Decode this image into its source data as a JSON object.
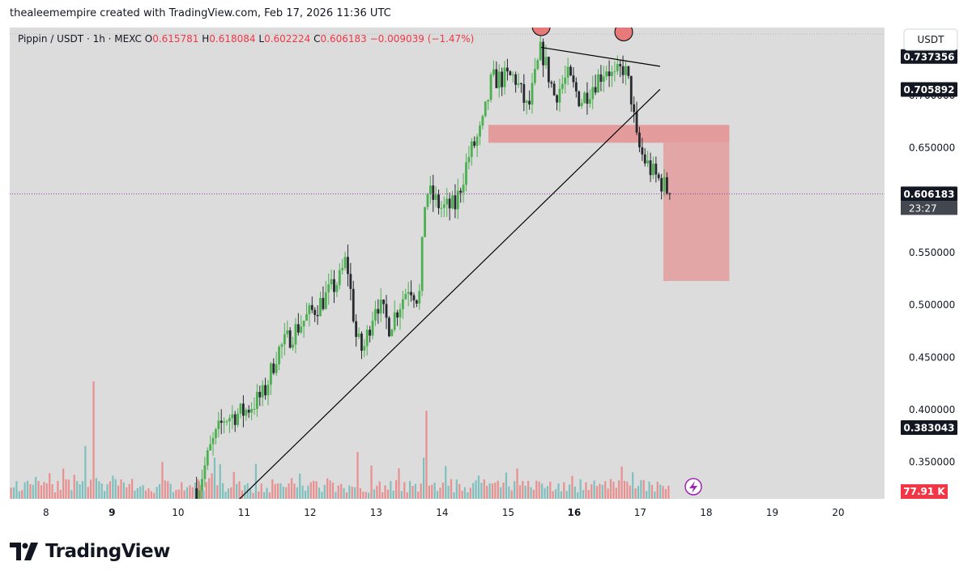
{
  "header": {
    "caption": "thealeemempire created with TradingView.com, Feb 17, 2026 11:36 UTC"
  },
  "legend": {
    "symbol": "Pippin / USDT · 1h · MEXC",
    "open_label": "O",
    "open": "0.615781",
    "high_label": "H",
    "high": "0.618084",
    "low_label": "L",
    "low": "0.602224",
    "close_label": "C",
    "close": "0.606183",
    "change": "−0.009039 (−1.47%)"
  },
  "currency_button": "USDT",
  "footer": {
    "brand": "TradingView",
    "logo_icon": "tradingview-logo-icon"
  },
  "colors": {
    "background": "#dcdcdc",
    "up": "#4caf50",
    "down": "#26292e",
    "volume_up": "#7ec0bd",
    "volume_down": "#e88f8f",
    "zone": "#e58f8f",
    "legend_value": "#f23645"
  },
  "chart_data": {
    "type": "candlestick",
    "x_ticks": [
      {
        "label": "8",
        "day": 8
      },
      {
        "label": "9",
        "day": 9,
        "bold": true
      },
      {
        "label": "10",
        "day": 10
      },
      {
        "label": "11",
        "day": 11
      },
      {
        "label": "12",
        "day": 12
      },
      {
        "label": "13",
        "day": 13
      },
      {
        "label": "14",
        "day": 14
      },
      {
        "label": "15",
        "day": 15
      },
      {
        "label": "16",
        "day": 16,
        "bold": true
      },
      {
        "label": "17",
        "day": 17
      },
      {
        "label": "18",
        "day": 18
      },
      {
        "label": "19",
        "day": 19
      },
      {
        "label": "20",
        "day": 20
      }
    ],
    "y_ticks": [
      "0.750000",
      "0.700000",
      "0.650000",
      "0.550000",
      "0.500000",
      "0.450000",
      "0.400000",
      "0.350000"
    ],
    "ylim": [
      0.315,
      0.765
    ],
    "xlim": [
      7.45,
      20.7
    ],
    "price_labels": [
      {
        "value": 0.737356,
        "text": "0.737356",
        "style": "dark"
      },
      {
        "value": 0.705892,
        "text": "0.705892",
        "style": "dark"
      },
      {
        "value": 0.606183,
        "text": "0.606183",
        "style": "last",
        "countdown": "23:27"
      },
      {
        "value": 0.383043,
        "text": "0.383043",
        "style": "dark"
      }
    ],
    "volume_label": "77.91 K",
    "last_price": 0.606183,
    "key_points": [
      {
        "day": 10.3,
        "price": 0.325
      },
      {
        "day": 10.5,
        "price": 0.365
      },
      {
        "day": 10.7,
        "price": 0.392
      },
      {
        "day": 11.0,
        "price": 0.398
      },
      {
        "day": 11.3,
        "price": 0.415
      },
      {
        "day": 11.5,
        "price": 0.455
      },
      {
        "day": 11.8,
        "price": 0.478
      },
      {
        "day": 12.0,
        "price": 0.492
      },
      {
        "day": 12.2,
        "price": 0.505
      },
      {
        "day": 12.45,
        "price": 0.525
      },
      {
        "day": 12.55,
        "price": 0.545
      },
      {
        "day": 12.7,
        "price": 0.468
      },
      {
        "day": 12.8,
        "price": 0.455
      },
      {
        "day": 13.0,
        "price": 0.505
      },
      {
        "day": 13.2,
        "price": 0.48
      },
      {
        "day": 13.5,
        "price": 0.52
      },
      {
        "day": 13.65,
        "price": 0.505
      },
      {
        "day": 13.75,
        "price": 0.61
      },
      {
        "day": 14.0,
        "price": 0.592
      },
      {
        "day": 14.2,
        "price": 0.595
      },
      {
        "day": 14.4,
        "price": 0.642
      },
      {
        "day": 14.6,
        "price": 0.668
      },
      {
        "day": 14.75,
        "price": 0.715
      },
      {
        "day": 15.1,
        "price": 0.718
      },
      {
        "day": 15.3,
        "price": 0.685
      },
      {
        "day": 15.5,
        "price": 0.745
      },
      {
        "day": 15.7,
        "price": 0.7
      },
      {
        "day": 15.9,
        "price": 0.718
      },
      {
        "day": 16.1,
        "price": 0.695
      },
      {
        "day": 16.3,
        "price": 0.712
      },
      {
        "day": 16.5,
        "price": 0.728
      },
      {
        "day": 16.6,
        "price": 0.715
      },
      {
        "day": 16.75,
        "price": 0.728
      },
      {
        "day": 16.85,
        "price": 0.705
      },
      {
        "day": 16.95,
        "price": 0.655
      },
      {
        "day": 17.05,
        "price": 0.64
      },
      {
        "day": 17.2,
        "price": 0.625
      },
      {
        "day": 17.35,
        "price": 0.615
      },
      {
        "day": 17.45,
        "price": 0.606
      }
    ],
    "volume_spikes": [
      {
        "day": 8.7,
        "size": 1.0,
        "dir": "down"
      },
      {
        "day": 8.6,
        "size": 0.45,
        "dir": "up"
      },
      {
        "day": 13.75,
        "size": 0.75,
        "dir": "down"
      },
      {
        "day": 13.7,
        "size": 0.35,
        "dir": "up"
      },
      {
        "day": 12.7,
        "size": 0.4,
        "dir": "down"
      },
      {
        "day": 10.55,
        "size": 0.35,
        "dir": "up"
      }
    ],
    "annotations": {
      "uptrend_line": [
        {
          "day": 10.9,
          "price": 0.313
        },
        {
          "day": 17.3,
          "price": 0.706
        }
      ],
      "top_line": [
        {
          "day": 15.5,
          "price": 0.746
        },
        {
          "day": 17.3,
          "price": 0.728
        }
      ],
      "circles": [
        {
          "day": 15.5,
          "price": 0.765
        },
        {
          "day": 16.75,
          "price": 0.76
        }
      ],
      "resistance_zone": {
        "day_from": 14.7,
        "day_to": 18.35,
        "price_top": 0.672,
        "price_bottom": 0.655
      },
      "target_zone": {
        "day_from": 17.35,
        "day_to": 18.35,
        "price_top": 0.655,
        "price_bottom": 0.523
      }
    }
  }
}
